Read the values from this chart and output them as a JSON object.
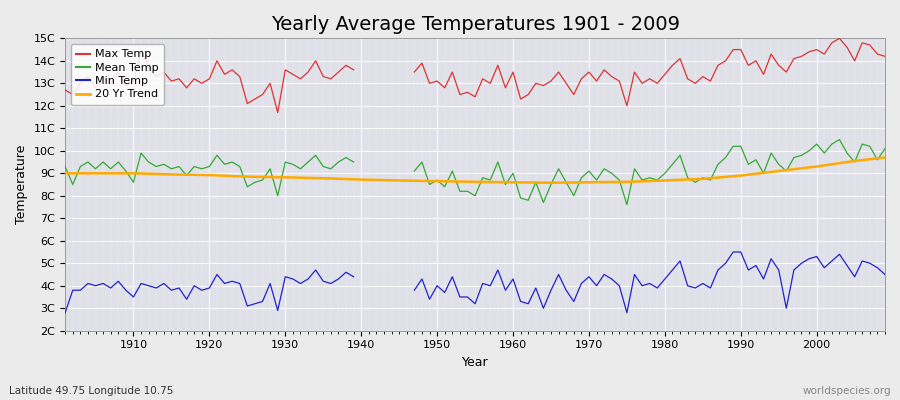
{
  "title": "Yearly Average Temperatures 1901 - 2009",
  "xlabel": "Year",
  "ylabel": "Temperature",
  "subtitle_left": "Latitude 49.75 Longitude 10.75",
  "subtitle_right": "worldspecies.org",
  "years_before_gap": [
    1901,
    1902,
    1903,
    1904,
    1905,
    1906,
    1907,
    1908,
    1909,
    1910,
    1911,
    1912,
    1913,
    1914,
    1915,
    1916,
    1917,
    1918,
    1919,
    1920,
    1921,
    1922,
    1923,
    1924,
    1925,
    1926,
    1927,
    1928,
    1929,
    1930,
    1931,
    1932,
    1933,
    1934,
    1935,
    1936,
    1937,
    1938,
    1939
  ],
  "max_before": [
    12.7,
    12.5,
    13.0,
    13.3,
    12.8,
    13.2,
    13.0,
    13.5,
    12.9,
    13.1,
    14.4,
    13.8,
    13.3,
    13.5,
    13.1,
    13.2,
    12.8,
    13.2,
    13.0,
    13.2,
    14.0,
    13.4,
    13.6,
    13.3,
    12.1,
    12.3,
    12.5,
    13.0,
    11.7,
    13.6,
    13.4,
    13.2,
    13.5,
    14.0,
    13.3,
    13.2,
    13.5,
    13.8,
    13.6
  ],
  "mean_before": [
    9.3,
    8.5,
    9.3,
    9.5,
    9.2,
    9.5,
    9.2,
    9.5,
    9.1,
    8.6,
    9.9,
    9.5,
    9.3,
    9.4,
    9.2,
    9.3,
    8.9,
    9.3,
    9.2,
    9.3,
    9.8,
    9.4,
    9.5,
    9.3,
    8.4,
    8.6,
    8.7,
    9.2,
    8.0,
    9.5,
    9.4,
    9.2,
    9.5,
    9.8,
    9.3,
    9.2,
    9.5,
    9.7,
    9.5
  ],
  "min_before": [
    2.8,
    3.8,
    3.8,
    4.1,
    4.0,
    4.1,
    3.9,
    4.2,
    3.8,
    3.5,
    4.1,
    4.0,
    3.9,
    4.1,
    3.8,
    3.9,
    3.4,
    4.0,
    3.8,
    3.9,
    4.5,
    4.1,
    4.2,
    4.1,
    3.1,
    3.2,
    3.3,
    4.1,
    2.9,
    4.4,
    4.3,
    4.1,
    4.3,
    4.7,
    4.2,
    4.1,
    4.3,
    4.6,
    4.4
  ],
  "years_after_gap": [
    1947,
    1948,
    1949,
    1950,
    1951,
    1952,
    1953,
    1954,
    1955,
    1956,
    1957,
    1958,
    1959,
    1960,
    1961,
    1962,
    1963,
    1964,
    1965,
    1966,
    1967,
    1968,
    1969,
    1970,
    1971,
    1972,
    1973,
    1974,
    1975,
    1976,
    1977,
    1978,
    1979,
    1980,
    1981,
    1982,
    1983,
    1984,
    1985,
    1986,
    1987,
    1988,
    1989,
    1990,
    1991,
    1992,
    1993,
    1994,
    1995,
    1996,
    1997,
    1998,
    1999,
    2000,
    2001,
    2002,
    2003,
    2004,
    2005,
    2006,
    2007,
    2008,
    2009
  ],
  "max_after": [
    13.5,
    13.9,
    13.0,
    13.1,
    12.8,
    13.5,
    12.5,
    12.6,
    12.4,
    13.2,
    13.0,
    13.8,
    12.8,
    13.5,
    12.3,
    12.5,
    13.0,
    12.9,
    13.1,
    13.5,
    13.0,
    12.5,
    13.2,
    13.5,
    13.1,
    13.6,
    13.3,
    13.1,
    12.0,
    13.5,
    13.0,
    13.2,
    13.0,
    13.4,
    13.8,
    14.1,
    13.2,
    13.0,
    13.3,
    13.1,
    13.8,
    14.0,
    14.5,
    14.5,
    13.8,
    14.0,
    13.4,
    14.3,
    13.8,
    13.5,
    14.1,
    14.2,
    14.4,
    14.5,
    14.3,
    14.8,
    15.0,
    14.6,
    14.0,
    14.8,
    14.7,
    14.3,
    14.2
  ],
  "mean_after": [
    9.1,
    9.5,
    8.5,
    8.7,
    8.4,
    9.1,
    8.2,
    8.2,
    8.0,
    8.8,
    8.7,
    9.5,
    8.5,
    9.0,
    7.9,
    7.8,
    8.6,
    7.7,
    8.5,
    9.2,
    8.6,
    8.0,
    8.8,
    9.1,
    8.7,
    9.2,
    9.0,
    8.7,
    7.6,
    9.2,
    8.7,
    8.8,
    8.7,
    9.0,
    9.4,
    9.8,
    8.8,
    8.6,
    8.8,
    8.7,
    9.4,
    9.7,
    10.2,
    10.2,
    9.4,
    9.6,
    9.0,
    9.9,
    9.4,
    9.1,
    9.7,
    9.8,
    10.0,
    10.3,
    9.9,
    10.3,
    10.5,
    9.9,
    9.5,
    10.3,
    10.2,
    9.6,
    10.1
  ],
  "min_after": [
    3.8,
    4.3,
    3.4,
    4.0,
    3.7,
    4.4,
    3.5,
    3.5,
    3.2,
    4.1,
    4.0,
    4.7,
    3.8,
    4.3,
    3.3,
    3.2,
    3.9,
    3.0,
    3.8,
    4.5,
    3.8,
    3.3,
    4.1,
    4.4,
    4.0,
    4.5,
    4.3,
    4.0,
    2.8,
    4.5,
    4.0,
    4.1,
    3.9,
    4.3,
    4.7,
    5.1,
    4.0,
    3.9,
    4.1,
    3.9,
    4.7,
    5.0,
    5.5,
    5.5,
    4.7,
    4.9,
    4.3,
    5.2,
    4.7,
    3.0,
    4.7,
    5.0,
    5.2,
    5.3,
    4.8,
    5.1,
    5.4,
    4.9,
    4.4,
    5.1,
    5.0,
    4.8,
    4.5
  ],
  "trend_years": [
    1901,
    1905,
    1910,
    1915,
    1920,
    1925,
    1930,
    1935,
    1940,
    1945,
    1950,
    1955,
    1960,
    1965,
    1970,
    1975,
    1980,
    1985,
    1990,
    1995,
    2000,
    2005,
    2009
  ],
  "trend_temp": [
    9.0,
    9.0,
    9.0,
    8.95,
    8.92,
    8.85,
    8.82,
    8.78,
    8.72,
    8.68,
    8.65,
    8.62,
    8.6,
    8.58,
    8.6,
    8.62,
    8.68,
    8.75,
    8.9,
    9.1,
    9.3,
    9.55,
    9.7
  ],
  "max_color": "#dd3333",
  "mean_color": "#33aa33",
  "min_color": "#2222cc",
  "trend_color": "#ffaa00",
  "bg_color": "#ebebeb",
  "plot_bg": "#e0e0e8",
  "ylim": [
    2,
    15
  ],
  "yticks": [
    2,
    3,
    4,
    5,
    6,
    7,
    8,
    9,
    10,
    11,
    12,
    13,
    14,
    15
  ],
  "ytick_labels": [
    "2C",
    "3C",
    "4C",
    "5C",
    "6C",
    "7C",
    "8C",
    "9C",
    "10C",
    "11C",
    "12C",
    "13C",
    "14C",
    "15C"
  ],
  "xlim": [
    1901,
    2009
  ],
  "title_fontsize": 14,
  "axis_label_fontsize": 9,
  "tick_fontsize": 8,
  "legend_fontsize": 8,
  "linewidth": 0.9,
  "trend_linewidth": 1.8
}
